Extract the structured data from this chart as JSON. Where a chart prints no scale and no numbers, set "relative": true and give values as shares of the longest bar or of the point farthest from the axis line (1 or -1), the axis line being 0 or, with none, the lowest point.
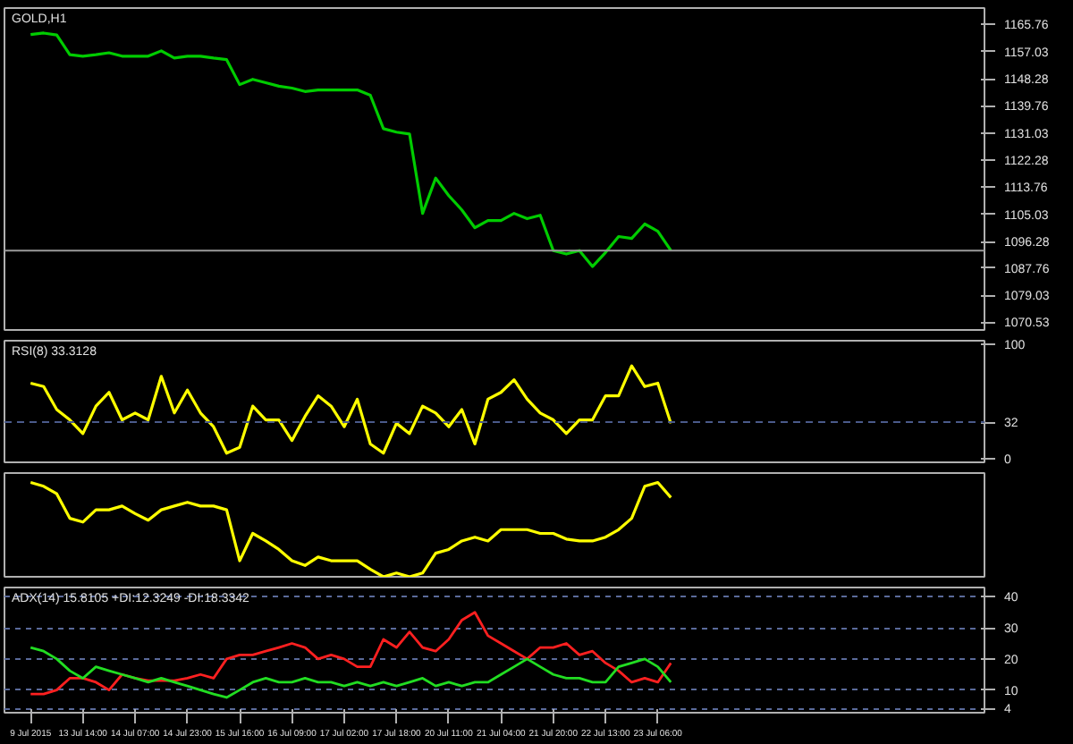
{
  "chart_data": [
    {
      "type": "line",
      "title": "GOLD,H1",
      "categories": [
        null,
        null,
        null,
        null,
        null,
        null,
        null,
        null,
        null,
        null,
        null,
        null,
        null,
        null,
        null,
        null,
        null,
        null,
        null,
        null,
        null,
        null,
        null,
        null,
        null,
        null,
        null,
        null,
        null,
        null,
        null,
        null,
        null,
        null,
        null,
        null,
        null,
        null,
        null,
        null,
        null,
        null,
        null,
        null,
        null,
        null,
        null,
        null,
        null,
        null
      ],
      "series": [
        {
          "color": "#00cc00",
          "values": [
            1162.5,
            1163,
            1162.4,
            1156.1,
            1155.6,
            1156.1,
            1156.7,
            1155.6,
            1155.6,
            1155.6,
            1157.3,
            1155,
            1155.6,
            1155.6,
            1155,
            1154.5,
            1146.5,
            1148.2,
            1147.1,
            1146,
            1145.4,
            1144.3,
            1144.8,
            1144.8,
            1144.8,
            1144.8,
            1143.1,
            1132.4,
            1131.3,
            1130.7,
            1105.3,
            1116.6,
            1111,
            1106.4,
            1100.7,
            1103,
            1103,
            1105.3,
            1103.6,
            1104.7,
            1093.4,
            1092.3,
            1093.4,
            1088.3,
            1092.8,
            1097.9,
            1097.3,
            1101.9,
            1099.6,
            1093.4
          ]
        }
      ],
      "ylim": [
        1068,
        1171
      ],
      "yticks": [
        1165.76,
        1157.03,
        1148.28,
        1139.76,
        1131.03,
        1122.28,
        1113.76,
        1105.03,
        1096.28,
        1087.76,
        1079.03,
        1070.53
      ],
      "ref_lines": [
        {
          "axis": "y",
          "value": 1093.4,
          "color": "#9a9a9a"
        }
      ],
      "tick_labels": "y"
    },
    {
      "type": "line",
      "title": "RSI(8) 33.3128",
      "categories": [
        null,
        null,
        null,
        null,
        null,
        null,
        null,
        null,
        null,
        null,
        null,
        null,
        null,
        null,
        null,
        null,
        null,
        null,
        null,
        null,
        null,
        null,
        null,
        null,
        null,
        null,
        null,
        null,
        null,
        null,
        null,
        null,
        null,
        null,
        null,
        null,
        null,
        null,
        null,
        null,
        null,
        null,
        null,
        null,
        null,
        null,
        null,
        null,
        null,
        null
      ],
      "series": [
        {
          "color": "#ffff00",
          "values": [
            66,
            63,
            43,
            34,
            22,
            46,
            58,
            34,
            40,
            34,
            72,
            40,
            60,
            40,
            28,
            5,
            10,
            46,
            34,
            34,
            16,
            37,
            55,
            46,
            28,
            52,
            13,
            5,
            31,
            22,
            46,
            40,
            28,
            43,
            13,
            52,
            58,
            69,
            52,
            40,
            34,
            22,
            34,
            34,
            55,
            55,
            81,
            63,
            66,
            31
          ]
        }
      ],
      "ylim": [
        -3,
        103
      ],
      "yticks": [
        0,
        32,
        100
      ],
      "ref_lines": [
        {
          "axis": "y",
          "value": 32,
          "color": "#4a5a8a",
          "line_style": "dashed"
        }
      ],
      "tick_labels": "y"
    },
    {
      "type": "line",
      "relative": true,
      "categories": [
        null,
        null,
        null,
        null,
        null,
        null,
        null,
        null,
        null,
        null,
        null,
        null,
        null,
        null,
        null,
        null,
        null,
        null,
        null,
        null,
        null,
        null,
        null,
        null,
        null,
        null,
        null,
        null,
        null,
        null,
        null,
        null,
        null,
        null,
        null,
        null,
        null,
        null,
        null,
        null,
        null,
        null,
        null,
        null,
        null,
        null,
        null,
        null,
        null,
        null
      ],
      "series": [
        {
          "color": "#ffff00",
          "values": [
            1.0,
            0.96,
            0.88,
            0.62,
            0.58,
            0.71,
            0.71,
            0.75,
            0.67,
            0.6,
            0.71,
            0.75,
            0.79,
            0.75,
            0.75,
            0.71,
            0.17,
            0.46,
            0.38,
            0.29,
            0.17,
            0.12,
            0.21,
            0.17,
            0.17,
            0.17,
            0.08,
            0,
            0.04,
            0,
            0.04,
            0.25,
            0.29,
            0.38,
            0.42,
            0.38,
            0.5,
            0.5,
            0.5,
            0.46,
            0.46,
            0.4,
            0.38,
            0.38,
            0.42,
            0.5,
            0.62,
            0.96,
            1.0,
            0.84
          ]
        }
      ],
      "tick_labels": false
    },
    {
      "type": "line",
      "title": "ADX(14) 15.8105 +DI:12.3249 -DI:18.3342",
      "categories": [
        "9 Jul 2015",
        null,
        null,
        null,
        "13 Jul 14:00",
        null,
        null,
        null,
        "14 Jul 07:00",
        null,
        null,
        null,
        "14 Jul 23:00",
        null,
        null,
        null,
        "15 Jul 16:00",
        null,
        null,
        null,
        "16 Jul 09:00",
        null,
        null,
        null,
        "17 Jul 02:00",
        null,
        null,
        null,
        "17 Jul 18:00",
        null,
        null,
        null,
        "20 Jul 11:00",
        null,
        null,
        null,
        "21 Jul 04:00",
        null,
        null,
        null,
        "21 Jul 20:00",
        null,
        null,
        null,
        "22 Jul 13:00",
        null,
        null,
        null,
        "23 Jul 06:00",
        null
      ],
      "series": [
        {
          "color": "#ff2020",
          "values": [
            8.7,
            8.7,
            10,
            13.8,
            13.8,
            12.5,
            10,
            15,
            13.8,
            13,
            13,
            13,
            13.8,
            15,
            13.8,
            20,
            21.3,
            21.3,
            22.5,
            23.7,
            25,
            23.7,
            20,
            21.3,
            20,
            17.5,
            17.5,
            26.3,
            23.7,
            28.7,
            23.7,
            22.5,
            26.3,
            32.5,
            35,
            27.5,
            25,
            22.5,
            20,
            23.7,
            23.7,
            25,
            21.3,
            22.5,
            18.7,
            16.2,
            12.5,
            13.8,
            12.5,
            18.7
          ]
        },
        {
          "color": "#22dd22",
          "values": [
            23.7,
            22.5,
            20,
            16.2,
            13.8,
            17.5,
            16.2,
            15,
            13.8,
            12.5,
            13.8,
            12.5,
            11.3,
            10,
            8.7,
            7.6,
            10,
            12.5,
            13.8,
            12.5,
            12.5,
            13.8,
            12.5,
            12.5,
            11.3,
            12.5,
            11.3,
            12.5,
            11.3,
            12.5,
            13.8,
            11.3,
            12.5,
            11.3,
            12.5,
            12.5,
            15,
            17.5,
            20,
            17.5,
            15,
            13.8,
            13.8,
            12.5,
            12.5,
            17.5,
            18.7,
            20,
            17.5,
            12.5
          ]
        }
      ],
      "ylim": [
        2.7,
        43
      ],
      "yticks": [
        4,
        10,
        20,
        30,
        40
      ],
      "grid": "y"
    }
  ]
}
